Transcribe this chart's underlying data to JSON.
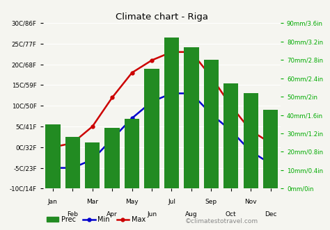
{
  "title": "Climate chart - Riga",
  "months": [
    "Jan",
    "Feb",
    "Mar",
    "Apr",
    "May",
    "Jun",
    "Jul",
    "Aug",
    "Sep",
    "Oct",
    "Nov",
    "Dec"
  ],
  "precip_mm": [
    35,
    28,
    25,
    33,
    38,
    65,
    82,
    77,
    70,
    57,
    52,
    43
  ],
  "temp_min": [
    -5,
    -5,
    -3,
    2,
    7,
    11,
    13,
    13,
    8,
    4,
    -1,
    -4
  ],
  "temp_max": [
    0,
    1,
    5,
    12,
    18,
    21,
    23,
    23,
    17,
    10,
    4,
    1
  ],
  "bar_color": "#228B22",
  "min_color": "#0000cc",
  "max_color": "#cc0000",
  "background_color": "#f5f5f0",
  "grid_color": "#ffffff",
  "ylabel_left_ticks": [
    -10,
    -5,
    0,
    5,
    10,
    15,
    20,
    25,
    30
  ],
  "ylabel_left_labels": [
    "-10C/14F",
    "-5C/23F",
    "0C/32F",
    "5C/41F",
    "10C/50F",
    "15C/59F",
    "20C/68F",
    "25C/77F",
    "30C/86F"
  ],
  "ylabel_right_ticks": [
    0,
    10,
    20,
    30,
    40,
    50,
    60,
    70,
    80,
    90
  ],
  "ylabel_right_labels": [
    "0mm/0in",
    "10mm/0.4in",
    "20mm/0.8in",
    "30mm/1.2in",
    "40mm/1.6in",
    "50mm/2in",
    "60mm/2.4in",
    "70mm/2.8in",
    "80mm/3.2in",
    "90mm/3.6in"
  ],
  "temp_ylim": [
    -10,
    30
  ],
  "precip_ylim": [
    0,
    90
  ],
  "watermark": "©climatestotravel.com",
  "legend_labels": [
    "Prec",
    "Min",
    "Max"
  ],
  "odd_indices": [
    0,
    2,
    4,
    6,
    8,
    10
  ],
  "even_indices": [
    1,
    3,
    5,
    7,
    9,
    11
  ]
}
